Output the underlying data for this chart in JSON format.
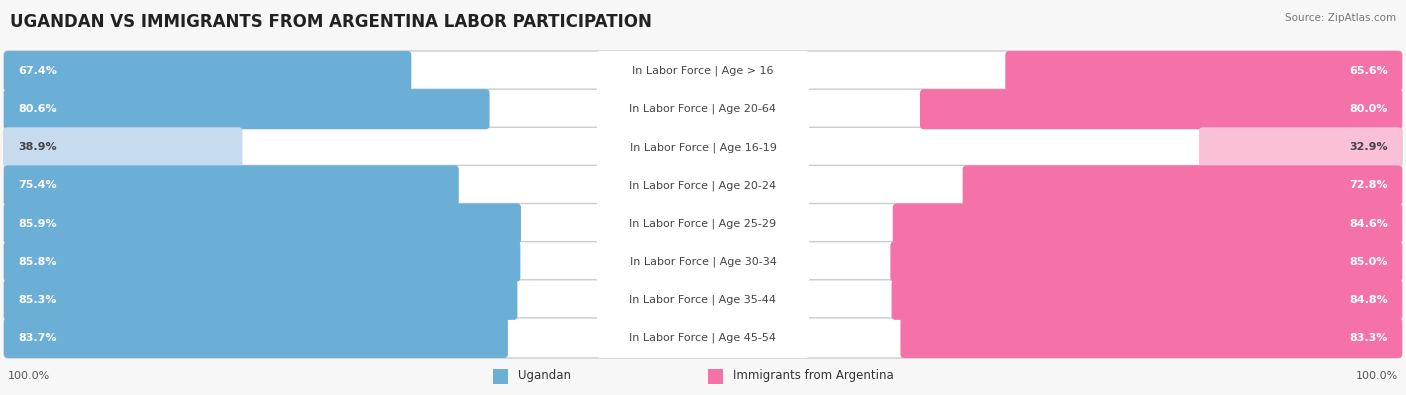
{
  "title": "UGANDAN VS IMMIGRANTS FROM ARGENTINA LABOR PARTICIPATION",
  "source": "Source: ZipAtlas.com",
  "categories": [
    "In Labor Force | Age > 16",
    "In Labor Force | Age 20-64",
    "In Labor Force | Age 16-19",
    "In Labor Force | Age 20-24",
    "In Labor Force | Age 25-29",
    "In Labor Force | Age 30-34",
    "In Labor Force | Age 35-44",
    "In Labor Force | Age 45-54"
  ],
  "ugandan": [
    67.4,
    80.6,
    38.9,
    75.4,
    85.9,
    85.8,
    85.3,
    83.7
  ],
  "argentina": [
    65.6,
    80.0,
    32.9,
    72.8,
    84.6,
    85.0,
    84.8,
    83.3
  ],
  "ugandan_color": "#6BAED6",
  "argentina_color": "#F472A8",
  "ugandan_color_light": "#C6DCEE",
  "argentina_color_light": "#F9C0D8",
  "row_bg": "#FFFFFF",
  "row_border": "#DDDDDD",
  "fig_bg": "#F7F7F7",
  "max_val": 100.0,
  "legend_ugandan": "Ugandan",
  "legend_argentina": "Immigrants from Argentina",
  "title_fontsize": 12,
  "bar_label_fontsize": 8,
  "cat_label_fontsize": 8
}
